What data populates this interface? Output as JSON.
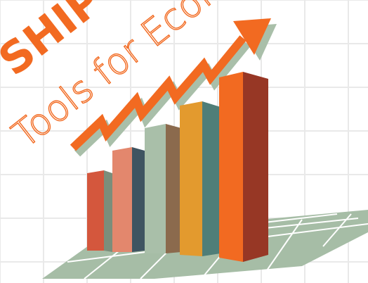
{
  "headline": {
    "fragment": "SHIP",
    "subtitle_fragment": "Tools for Econo"
  },
  "colors": {
    "background": "#ffffff",
    "grid_line": "#e9e9e9",
    "floor_fill": "#a6bda6",
    "floor_line": "#ffffff",
    "headline": "#f26a21",
    "tagline": "#f26a21",
    "arrow": "#f26a21",
    "arrow_shadow": "#a9bfa9",
    "bar1_front": "#d4573d",
    "bar1_side": "#7b8e7b",
    "bar2_front": "#e3876d",
    "bar2_side": "#3f5461",
    "bar3_front": "#a9bfa9",
    "bar3_side": "#8b6a4d",
    "bar4_front": "#e39a2e",
    "bar4_side": "#4f7e78",
    "bar5_front": "#f26a21",
    "bar5_side": "#973725"
  },
  "icons": [
    "growth-arrow-icon",
    "bar-chart-icon"
  ]
}
